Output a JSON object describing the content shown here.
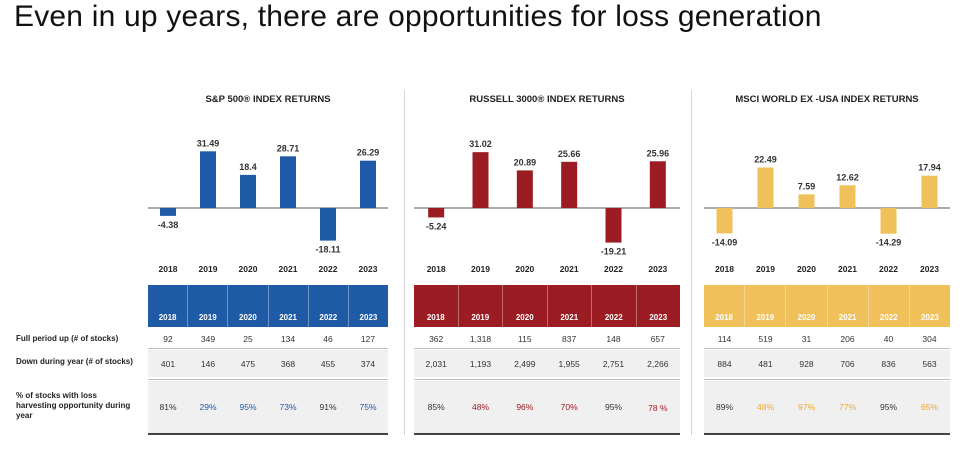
{
  "title": "Even in up years, there are opportunities for loss generation",
  "row_labels": {
    "full_period_up": "Full period up (# of stocks)",
    "down_during_year": "Down during year (# of stocks)",
    "pct_loss_harvesting": "% of stocks with loss harvesting opportunity during year"
  },
  "chart_data": [
    {
      "type": "bar",
      "title": "S&P 500® INDEX RETURNS",
      "color": "#1f5aa6",
      "categories": [
        "2018",
        "2019",
        "2020",
        "2021",
        "2022",
        "2023"
      ],
      "values": [
        -4.38,
        31.49,
        18.4,
        28.71,
        -18.11,
        26.29
      ],
      "value_labels": [
        "-4.38",
        "31.49",
        "18.4",
        "28.71",
        "-18.11",
        "26.29"
      ],
      "ylim": [
        -20,
        35
      ],
      "table": {
        "full_period_up": [
          "92",
          "349",
          "25",
          "134",
          "46",
          "127"
        ],
        "down_during_year": [
          "401",
          "146",
          "475",
          "368",
          "455",
          "374"
        ],
        "pct_loss_harvesting": [
          "81%",
          "29%",
          "95%",
          "73%",
          "91%",
          "75%"
        ],
        "pct_highlight": [
          false,
          true,
          true,
          true,
          false,
          true
        ]
      }
    },
    {
      "type": "bar",
      "title": "RUSSELL 3000® INDEX RETURNS",
      "color": "#9b1c22",
      "categories": [
        "2018",
        "2019",
        "2020",
        "2021",
        "2022",
        "2023"
      ],
      "values": [
        -5.24,
        31.02,
        20.89,
        25.66,
        -19.21,
        25.96
      ],
      "value_labels": [
        "-5.24",
        "31.02",
        "20.89",
        "25.66",
        "-19.21",
        "25.96"
      ],
      "ylim": [
        -20,
        35
      ],
      "table": {
        "full_period_up": [
          "362",
          "1,318",
          "115",
          "837",
          "148",
          "657"
        ],
        "down_during_year": [
          "2,031",
          "1,193",
          "2,499",
          "1,955",
          "2,751",
          "2,266"
        ],
        "pct_loss_harvesting": [
          "85%",
          "48%",
          "96%",
          "70%",
          "95%",
          "78 %"
        ],
        "pct_highlight": [
          false,
          true,
          true,
          true,
          false,
          true
        ]
      }
    },
    {
      "type": "bar",
      "title": "MSCI WORLD EX -USA INDEX RETURNS",
      "color": "#f0c05a",
      "categories": [
        "2018",
        "2019",
        "2020",
        "2021",
        "2022",
        "2023"
      ],
      "values": [
        -14.09,
        22.49,
        7.59,
        12.62,
        -14.29,
        17.94
      ],
      "value_labels": [
        "-14.09",
        "22.49",
        "7.59",
        "12.62",
        "-14.29",
        "17.94"
      ],
      "ylim": [
        -20,
        35
      ],
      "table": {
        "full_period_up": [
          "114",
          "519",
          "31",
          "206",
          "40",
          "304"
        ],
        "down_during_year": [
          "884",
          "481",
          "928",
          "706",
          "836",
          "563"
        ],
        "pct_loss_harvesting": [
          "89%",
          "48%",
          "97%",
          "77%",
          "95%",
          "65%"
        ],
        "pct_highlight": [
          false,
          true,
          true,
          true,
          false,
          true
        ]
      }
    }
  ],
  "colors": {
    "sp500": "#1f5aa6",
    "russell": "#9b1c22",
    "msci": "#f0c05a",
    "msci_text": "#f0a830"
  }
}
